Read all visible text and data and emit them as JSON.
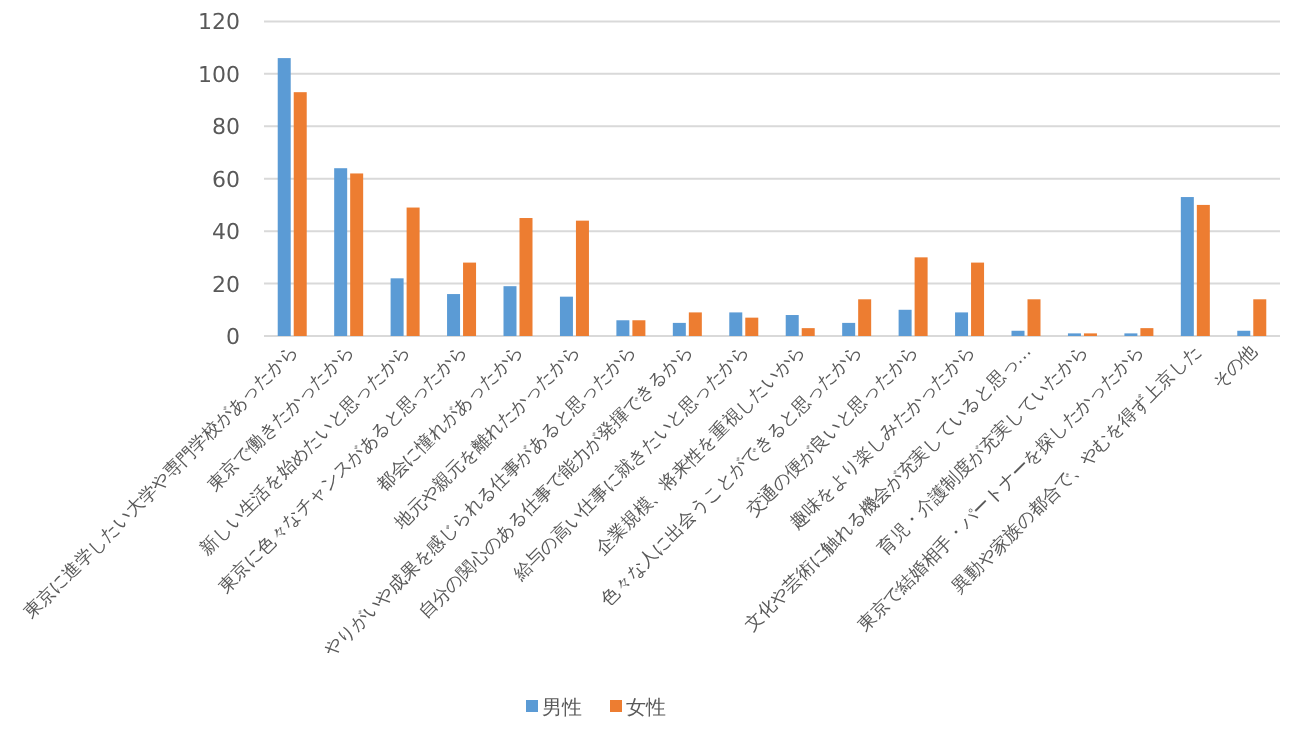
{
  "chart_data": {
    "type": "bar",
    "categories": [
      "東京に進学したい大学や専門学校があったから",
      "東京で働きたかったから",
      "新しい生活を始めたいと思ったから",
      "東京に色々なチャンスがあると思ったから",
      "都会に憧れがあったから",
      "地元や親元を離れたかったから",
      "やりがいや成果を感じられる仕事があると思ったから",
      "自分の関心のある仕事で能力が発揮できるから",
      "給与の高い仕事に就きたいと思ったから",
      "企業規模、将来性を重視したいから",
      "色々な人に出会うことができると思ったから",
      "交通の便が良いと思ったから",
      "趣味をより楽しみたかったから",
      "文化や芸術に触れる機会が充実していると思っ…",
      "育児・介護制度が充実していたから",
      "東京で結婚相手・パートナーを探したかったから",
      "異動や家族の都合で、やむを得ず上京した",
      "その他"
    ],
    "series": [
      {
        "name": "男性",
        "color": "#5b9bd5",
        "values": [
          106,
          64,
          22,
          16,
          19,
          15,
          6,
          5,
          9,
          8,
          5,
          10,
          9,
          2,
          1,
          1,
          53,
          2
        ]
      },
      {
        "name": "女性",
        "color": "#ed7d31",
        "values": [
          93,
          62,
          49,
          28,
          45,
          44,
          6,
          9,
          7,
          3,
          14,
          30,
          28,
          14,
          1,
          3,
          50,
          14
        ]
      }
    ],
    "ylim": [
      0,
      120
    ],
    "yticks": [
      0,
      20,
      40,
      60,
      80,
      100,
      120
    ],
    "grid": "y",
    "legend": "bottom"
  }
}
